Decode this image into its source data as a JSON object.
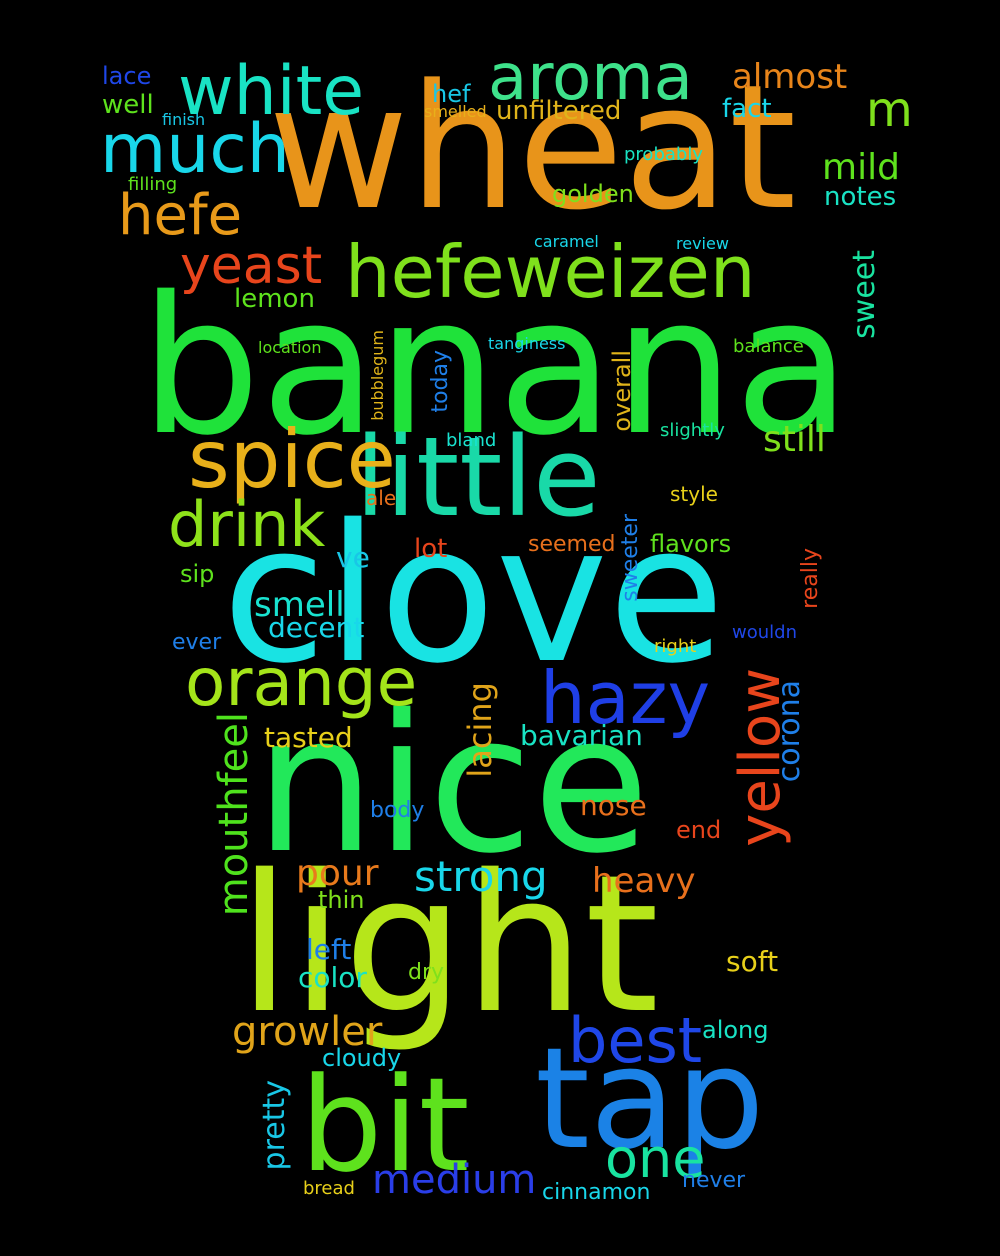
{
  "words": [
    {
      "text": "wheat",
      "color": "#e8941a"
    },
    {
      "text": "banana",
      "color": "#1fe23a"
    },
    {
      "text": "clove",
      "color": "#19e3e3"
    },
    {
      "text": "nice",
      "color": "#22e85a"
    },
    {
      "text": "light",
      "color": "#b6e61a"
    },
    {
      "text": "little",
      "color": "#19d9a8"
    },
    {
      "text": "bit",
      "color": "#5ee21d"
    },
    {
      "text": "tap",
      "color": "#1b82e6"
    },
    {
      "text": "hefeweizen",
      "color": "#7fe01c"
    },
    {
      "text": "spice",
      "color": "#e8b01a"
    },
    {
      "text": "aroma",
      "color": "#3ee28b"
    },
    {
      "text": "white",
      "color": "#19e3c4"
    },
    {
      "text": "much",
      "color": "#19d7ea"
    },
    {
      "text": "orange",
      "color": "#a4e41a"
    },
    {
      "text": "hazy",
      "color": "#1f3fe6"
    },
    {
      "text": "yellow",
      "color": "#e8451c"
    },
    {
      "text": "drink",
      "color": "#8ee21a"
    },
    {
      "text": "hefe",
      "color": "#e89a1a"
    },
    {
      "text": "yeast",
      "color": "#e8451c"
    },
    {
      "text": "best",
      "color": "#1f47e8"
    },
    {
      "text": "one",
      "color": "#19e3a0"
    },
    {
      "text": "strong",
      "color": "#19d7ea"
    },
    {
      "text": "growler",
      "color": "#e0a41a"
    },
    {
      "text": "medium",
      "color": "#2a3ee8"
    },
    {
      "text": "mouthfeel",
      "color": "#4fe21d"
    },
    {
      "text": "pretty",
      "color": "#19c7e6"
    },
    {
      "text": "heavy",
      "color": "#e8701c"
    },
    {
      "text": "smell",
      "color": "#19e3d0"
    },
    {
      "text": "still",
      "color": "#7fe01c"
    },
    {
      "text": "almost",
      "color": "#e8851a"
    },
    {
      "text": "m",
      "color": "#7fe01c"
    },
    {
      "text": "mild",
      "color": "#5ee21d"
    },
    {
      "text": "pour",
      "color": "#e87a1c"
    },
    {
      "text": "corona",
      "color": "#1f7fe8"
    },
    {
      "text": "lacing",
      "color": "#e0a41a"
    },
    {
      "text": "sweet",
      "color": "#19e3a0"
    },
    {
      "text": "unfiltered",
      "color": "#e0b41a"
    },
    {
      "text": "decent",
      "color": "#19d7ea"
    },
    {
      "text": "bavarian",
      "color": "#19e3c4"
    },
    {
      "text": "tasted",
      "color": "#e8d01a"
    },
    {
      "text": "golden",
      "color": "#7fe01c"
    },
    {
      "text": "notes",
      "color": "#19e3c4"
    },
    {
      "text": "nose",
      "color": "#e8701c"
    },
    {
      "text": "soft",
      "color": "#e8d01a"
    },
    {
      "text": "lemon",
      "color": "#5ee21d"
    },
    {
      "text": "overall",
      "color": "#e0b41a"
    },
    {
      "text": "left",
      "color": "#1f7fe8"
    },
    {
      "text": "color",
      "color": "#19e3c4"
    },
    {
      "text": "cloudy",
      "color": "#19d7ea"
    },
    {
      "text": "bread",
      "color": "#e8d01a"
    },
    {
      "text": "cinnamon",
      "color": "#19d7ea"
    },
    {
      "text": "never",
      "color": "#1f7fe8"
    },
    {
      "text": "lot",
      "color": "#e8451c"
    },
    {
      "text": "flavors",
      "color": "#5ee21d"
    },
    {
      "text": "seemed",
      "color": "#e8701c"
    },
    {
      "text": "sweeter",
      "color": "#1f7fe8"
    },
    {
      "text": "really",
      "color": "#e8451c"
    },
    {
      "text": "along",
      "color": "#19e3c4"
    },
    {
      "text": "fact",
      "color": "#19d7ea"
    },
    {
      "text": "well",
      "color": "#5ee21d"
    },
    {
      "text": "lace",
      "color": "#1f47e8"
    },
    {
      "text": "ve",
      "color": "#19c7e6"
    },
    {
      "text": "sip",
      "color": "#5ee21d"
    },
    {
      "text": "ever",
      "color": "#1f7fe8"
    },
    {
      "text": "body",
      "color": "#1f7fe8"
    },
    {
      "text": "thin",
      "color": "#7fe01c"
    },
    {
      "text": "dry",
      "color": "#7fe01c"
    },
    {
      "text": "end",
      "color": "#e8451c"
    },
    {
      "text": "hef",
      "color": "#19c7e6"
    },
    {
      "text": "bland",
      "color": "#19e3d0"
    },
    {
      "text": "ale",
      "color": "#e8701c"
    },
    {
      "text": "probably",
      "color": "#19e3c4"
    },
    {
      "text": "review",
      "color": "#19d7ea"
    },
    {
      "text": "balance",
      "color": "#5ee21d"
    },
    {
      "text": "slightly",
      "color": "#19e3a0"
    },
    {
      "text": "style",
      "color": "#e8d01a"
    },
    {
      "text": "wouldn",
      "color": "#1f47e8"
    },
    {
      "text": "right",
      "color": "#e8d01a"
    },
    {
      "text": "today",
      "color": "#1f7fe8"
    },
    {
      "text": "bubblegum",
      "color": "#e0b41a"
    },
    {
      "text": "caramel",
      "color": "#19d7ea"
    },
    {
      "text": "filling",
      "color": "#5ee21d"
    },
    {
      "text": "finish",
      "color": "#19c7e6"
    },
    {
      "text": "smelled",
      "color": "#e8b01a"
    },
    {
      "text": "location",
      "color": "#5ee21d"
    },
    {
      "text": "tanginess",
      "color": "#19d7ea"
    }
  ]
}
